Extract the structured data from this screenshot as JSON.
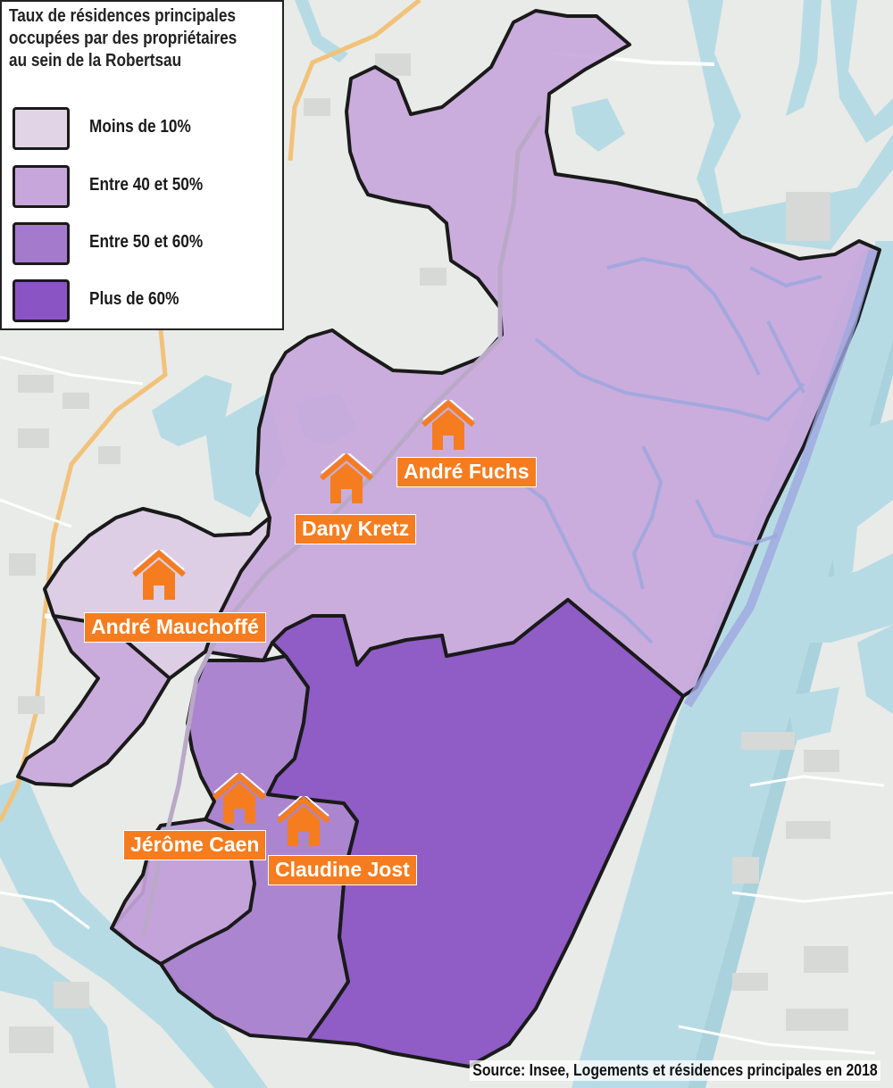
{
  "legend": {
    "title_line1": "Taux de résidences principales",
    "title_line2": "occupées par des propriétaires",
    "title_line3": "au sein de la Robertsau",
    "items": [
      {
        "label": "Moins de 10%",
        "color": "#e1d4e6"
      },
      {
        "label": "Entre 40 et 50%",
        "color": "#c7a6db"
      },
      {
        "label": "Entre 50 et 60%",
        "color": "#a47acc"
      },
      {
        "label": "Plus de 60%",
        "color": "#8b54c4"
      }
    ]
  },
  "markers": [
    {
      "name": "André Fuchs"
    },
    {
      "name": "Dany Kretz"
    },
    {
      "name": "André Mauchoffé"
    },
    {
      "name": "Jérôme Caen"
    },
    {
      "name": "Claudine Jost"
    }
  ],
  "source": "Source: Insee, Logements et résidences principales en 2018",
  "colors": {
    "water": "#b7dbe4",
    "land": "#e8ebe8",
    "marker": "#f57d1f",
    "border": "#1a1a1a"
  }
}
